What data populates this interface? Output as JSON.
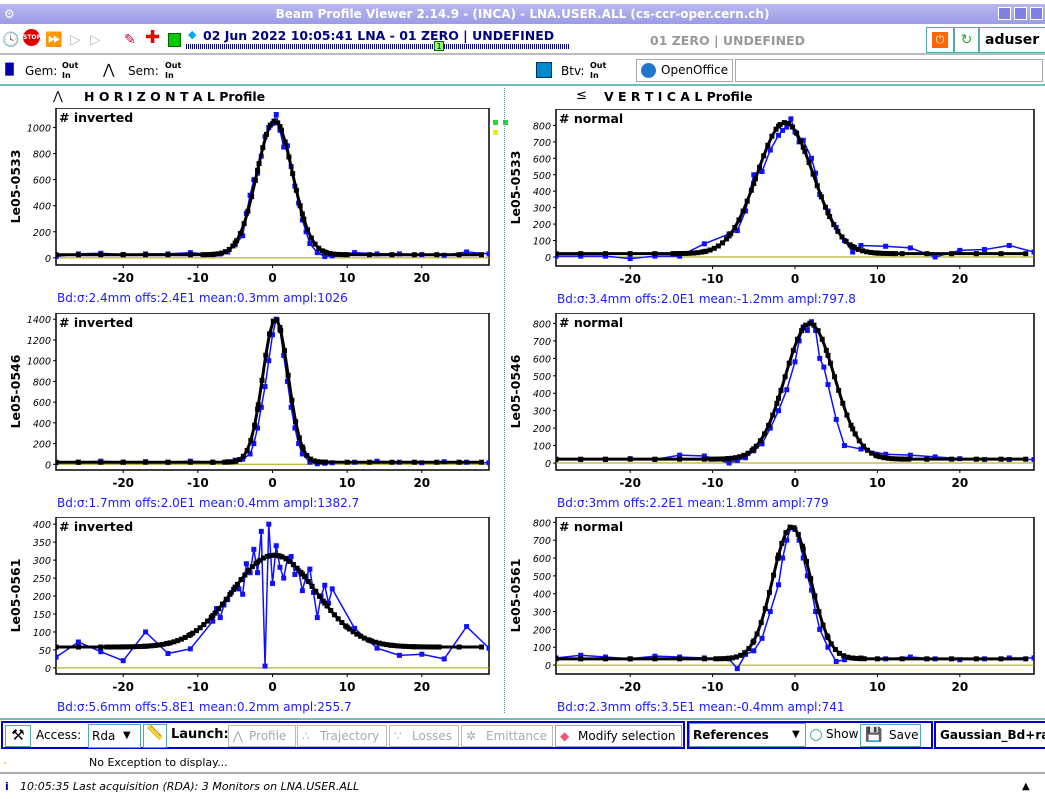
{
  "window": {
    "title": "Beam Profile Viewer 2.14.9 - (INCA)  - LNA.USER.ALL (cs-ccr-oper.cern.ch)"
  },
  "toolbar": {
    "acquisition": "02 Jun 2022  10:05:41  LNA - 01 ZERO | UNDEFINED",
    "timeline_marker": "1",
    "destination": "01 ZERO | UNDEFINED",
    "user": "aduser",
    "icons": [
      "clock-icon",
      "stop-icon",
      "fast-forward-icon",
      "play-step-icon",
      "play-icon",
      "eraser-icon",
      "add-icon",
      "green-square-icon",
      "diamond-icon"
    ]
  },
  "status": {
    "gem_label": "Gem:",
    "sem_label": "Sem:",
    "btv_label": "Btv:",
    "out_label": "Out",
    "in_label": "In",
    "openoffice_label": "OpenOffice",
    "gem_out": [
      "g",
      "g"
    ],
    "gem_in": [
      "",
      ""
    ],
    "sem_out": [
      "g",
      "g",
      "",
      "g",
      "g",
      "",
      "g",
      "g",
      "g",
      "g",
      "g",
      "",
      "g",
      "g",
      "g",
      "g",
      "g",
      "g",
      "",
      "g",
      "",
      "g",
      "",
      "g",
      "g",
      "g",
      "g",
      "g",
      "r",
      "",
      "g",
      "g"
    ],
    "sem_in": [
      "y",
      "",
      "y",
      "y",
      "",
      "y",
      "",
      "",
      "",
      "",
      "",
      "y",
      "",
      "",
      "",
      "",
      "",
      "",
      "y",
      "",
      "y",
      "y",
      "",
      "y",
      "",
      "",
      "",
      "",
      "r",
      "y",
      "y",
      ""
    ],
    "btv_out": [
      "g"
    ],
    "colors": {
      "g": "#22dd22",
      "y": "#eeee00",
      "r": "#dd0000"
    }
  },
  "panels": {
    "horizontal_title": "H O R I Z O N T A L  Profile",
    "vertical_title": "V E R T I C A L  Profile"
  },
  "chart_data": [
    {
      "type": "line",
      "panel": "horizontal",
      "ylabel": "Le05-0533",
      "mode": "# inverted",
      "caption": "Bd:σ:2.4mm offs:2.4E1 mean:0.3mm ampl:1026",
      "xlim": [
        -29,
        29
      ],
      "ylim": [
        -55,
        1150
      ],
      "xticks": [
        -20,
        -10,
        0,
        10,
        20
      ],
      "yticks": [
        0,
        200,
        400,
        600,
        800,
        1000
      ],
      "fit": {
        "sigma": 2.4,
        "offset": 24,
        "mean": 0.3,
        "amplitude": 1026
      },
      "measured": [
        [
          -29,
          10
        ],
        [
          -26,
          30
        ],
        [
          -23,
          35
        ],
        [
          -20,
          25
        ],
        [
          -17,
          30
        ],
        [
          -14,
          30
        ],
        [
          -11,
          40
        ],
        [
          -8,
          25
        ],
        [
          -7,
          30
        ],
        [
          -6,
          45
        ],
        [
          -5,
          100
        ],
        [
          -4,
          170
        ],
        [
          -3.5,
          340
        ],
        [
          -3,
          480
        ],
        [
          -2.5,
          600
        ],
        [
          -2,
          650
        ],
        [
          -1.5,
          780
        ],
        [
          -1,
          930
        ],
        [
          -0.5,
          1000
        ],
        [
          0,
          1030
        ],
        [
          0.5,
          1100
        ],
        [
          1,
          980
        ],
        [
          1.5,
          850
        ],
        [
          2,
          860
        ],
        [
          2.5,
          700
        ],
        [
          3,
          550
        ],
        [
          3.5,
          420
        ],
        [
          4,
          290
        ],
        [
          4.5,
          200
        ],
        [
          5,
          110
        ],
        [
          6,
          40
        ],
        [
          7,
          10
        ],
        [
          8,
          15
        ],
        [
          11,
          40
        ],
        [
          14,
          30
        ],
        [
          17,
          30
        ],
        [
          20,
          25
        ],
        [
          23,
          20
        ],
        [
          26,
          45
        ],
        [
          29,
          30
        ]
      ]
    },
    {
      "type": "line",
      "panel": "horizontal",
      "ylabel": "Le05-0546",
      "mode": "# inverted",
      "caption": "Bd:σ:1.7mm offs:2.0E1 mean:0.4mm ampl:1382.7",
      "xlim": [
        -29,
        29
      ],
      "ylim": [
        -55,
        1460
      ],
      "xticks": [
        -20,
        -10,
        0,
        10,
        20
      ],
      "yticks": [
        0,
        200,
        400,
        600,
        800,
        1000,
        1200,
        1400
      ],
      "fit": {
        "sigma": 1.7,
        "offset": 20,
        "mean": 0.4,
        "amplitude": 1382.7
      },
      "measured": [
        [
          -29,
          15
        ],
        [
          -26,
          20
        ],
        [
          -23,
          30
        ],
        [
          -20,
          20
        ],
        [
          -17,
          25
        ],
        [
          -14,
          20
        ],
        [
          -11,
          30
        ],
        [
          -8,
          20
        ],
        [
          -6,
          25
        ],
        [
          -5,
          40
        ],
        [
          -4,
          50
        ],
        [
          -3,
          100
        ],
        [
          -2.5,
          200
        ],
        [
          -2,
          350
        ],
        [
          -1.5,
          550
        ],
        [
          -1,
          750
        ],
        [
          -0.5,
          1000
        ],
        [
          0,
          1250
        ],
        [
          0.5,
          1400
        ],
        [
          1,
          1300
        ],
        [
          1.5,
          1050
        ],
        [
          2,
          800
        ],
        [
          2.5,
          550
        ],
        [
          3,
          350
        ],
        [
          3.5,
          200
        ],
        [
          4,
          100
        ],
        [
          5,
          20
        ],
        [
          6,
          5
        ],
        [
          7,
          10
        ],
        [
          8,
          15
        ],
        [
          11,
          20
        ],
        [
          14,
          30
        ],
        [
          17,
          20
        ],
        [
          20,
          15
        ],
        [
          23,
          25
        ],
        [
          26,
          20
        ],
        [
          29,
          15
        ]
      ]
    },
    {
      "type": "line",
      "panel": "horizontal",
      "ylabel": "Le05-0561",
      "mode": "# inverted",
      "caption": "Bd:σ:5.6mm offs:5.8E1 mean:0.2mm ampl:255.7",
      "xlim": [
        -29,
        29
      ],
      "ylim": [
        -17,
        420
      ],
      "xticks": [
        -20,
        -10,
        0,
        10,
        20
      ],
      "yticks": [
        0,
        50,
        100,
        150,
        200,
        250,
        300,
        350,
        400
      ],
      "fit": {
        "sigma": 5.6,
        "offset": 58,
        "mean": 0.2,
        "amplitude": 255.7
      },
      "measured": [
        [
          -29,
          30
        ],
        [
          -26,
          72
        ],
        [
          -23,
          45
        ],
        [
          -20,
          20
        ],
        [
          -17,
          100
        ],
        [
          -14,
          40
        ],
        [
          -11,
          53
        ],
        [
          -8,
          130
        ],
        [
          -7.5,
          165
        ],
        [
          -7,
          140
        ],
        [
          -6.5,
          175
        ],
        [
          -6,
          190
        ],
        [
          -5.5,
          210
        ],
        [
          -5,
          225
        ],
        [
          -4.5,
          220
        ],
        [
          -4,
          205
        ],
        [
          -3.5,
          290
        ],
        [
          -3,
          265
        ],
        [
          -2.5,
          330
        ],
        [
          -2,
          265
        ],
        [
          -1.5,
          380
        ],
        [
          -1,
          5
        ],
        [
          -0.5,
          400
        ],
        [
          0,
          235
        ],
        [
          0.5,
          340
        ],
        [
          1,
          280
        ],
        [
          1.5,
          250
        ],
        [
          2,
          305
        ],
        [
          2.5,
          310
        ],
        [
          3,
          260
        ],
        [
          3.5,
          270
        ],
        [
          4,
          215
        ],
        [
          4.5,
          255
        ],
        [
          5,
          275
        ],
        [
          5.5,
          210
        ],
        [
          6,
          140
        ],
        [
          6.5,
          200
        ],
        [
          7,
          230
        ],
        [
          7.5,
          180
        ],
        [
          8,
          220
        ],
        [
          11,
          110
        ],
        [
          14,
          55
        ],
        [
          17,
          35
        ],
        [
          20,
          38
        ],
        [
          23,
          25
        ],
        [
          26,
          115
        ],
        [
          29,
          55
        ]
      ]
    },
    {
      "type": "line",
      "panel": "vertical",
      "ylabel": "Le05-0533",
      "mode": "# normal",
      "caption": "Bd:σ:3.4mm offs:2.0E1 mean:-1.2mm ampl:797.8",
      "xlim": [
        -29,
        29
      ],
      "ylim": [
        -55,
        900
      ],
      "xticks": [
        -20,
        -10,
        0,
        10,
        20
      ],
      "yticks": [
        0,
        100,
        200,
        300,
        400,
        500,
        600,
        700,
        800
      ],
      "fit": {
        "sigma": 3.4,
        "offset": 20,
        "mean": -1.2,
        "amplitude": 797.8
      },
      "measured": [
        [
          -29,
          5
        ],
        [
          -26,
          5
        ],
        [
          -23,
          5
        ],
        [
          -20,
          -10
        ],
        [
          -17,
          5
        ],
        [
          -14,
          5
        ],
        [
          -11,
          80
        ],
        [
          -8,
          140
        ],
        [
          -7,
          160
        ],
        [
          -6,
          280
        ],
        [
          -5,
          500
        ],
        [
          -4,
          520
        ],
        [
          -3,
          650
        ],
        [
          -2,
          740
        ],
        [
          -1.5,
          770
        ],
        [
          -1,
          790
        ],
        [
          -0.5,
          840
        ],
        [
          0,
          760
        ],
        [
          0.5,
          700
        ],
        [
          1,
          710
        ],
        [
          2,
          600
        ],
        [
          2.5,
          510
        ],
        [
          3,
          380
        ],
        [
          4,
          280
        ],
        [
          5,
          180
        ],
        [
          6,
          100
        ],
        [
          7,
          30
        ],
        [
          8,
          70
        ],
        [
          11,
          65
        ],
        [
          14,
          55
        ],
        [
          17,
          0
        ],
        [
          20,
          40
        ],
        [
          23,
          45
        ],
        [
          26,
          70
        ],
        [
          29,
          30
        ]
      ]
    },
    {
      "type": "line",
      "panel": "vertical",
      "ylabel": "Le05-0546",
      "mode": "# normal",
      "caption": "Bd:σ:3mm offs:2.2E1 mean:1.8mm ampl:779",
      "xlim": [
        -29,
        29
      ],
      "ylim": [
        -40,
        860
      ],
      "xticks": [
        -20,
        -10,
        0,
        10,
        20
      ],
      "yticks": [
        0,
        100,
        200,
        300,
        400,
        500,
        600,
        700,
        800
      ],
      "fit": {
        "sigma": 3,
        "offset": 22,
        "mean": 1.8,
        "amplitude": 779
      },
      "measured": [
        [
          -29,
          20
        ],
        [
          -26,
          20
        ],
        [
          -23,
          20
        ],
        [
          -20,
          25
        ],
        [
          -17,
          20
        ],
        [
          -14,
          45
        ],
        [
          -11,
          40
        ],
        [
          -8,
          0
        ],
        [
          -7,
          15
        ],
        [
          -6,
          30
        ],
        [
          -5,
          70
        ],
        [
          -4,
          110
        ],
        [
          -3,
          200
        ],
        [
          -2,
          300
        ],
        [
          -1,
          420
        ],
        [
          0,
          580
        ],
        [
          0.5,
          700
        ],
        [
          1,
          780
        ],
        [
          1.5,
          760
        ],
        [
          2,
          810
        ],
        [
          2.5,
          760
        ],
        [
          3,
          600
        ],
        [
          3.5,
          550
        ],
        [
          4,
          450
        ],
        [
          5,
          250
        ],
        [
          6,
          100
        ],
        [
          8,
          80
        ],
        [
          11,
          50
        ],
        [
          14,
          45
        ],
        [
          17,
          35
        ],
        [
          20,
          25
        ],
        [
          23,
          20
        ],
        [
          26,
          20
        ],
        [
          29,
          20
        ]
      ]
    },
    {
      "type": "line",
      "panel": "vertical",
      "ylabel": "Le05-0561",
      "mode": "# normal",
      "caption": "Bd:σ:2.3mm offs:3.5E1 mean:-0.4mm ampl:741",
      "xlim": [
        -29,
        29
      ],
      "ylim": [
        -50,
        830
      ],
      "xticks": [
        -20,
        -10,
        0,
        10,
        20
      ],
      "yticks": [
        0,
        100,
        200,
        300,
        400,
        500,
        600,
        700,
        800
      ],
      "fit": {
        "sigma": 2.3,
        "offset": 35,
        "mean": -0.4,
        "amplitude": 741
      },
      "measured": [
        [
          -29,
          40
        ],
        [
          -26,
          55
        ],
        [
          -23,
          45
        ],
        [
          -20,
          35
        ],
        [
          -17,
          50
        ],
        [
          -14,
          45
        ],
        [
          -11,
          40
        ],
        [
          -8,
          35
        ],
        [
          -7,
          -20
        ],
        [
          -6,
          60
        ],
        [
          -5,
          80
        ],
        [
          -4,
          150
        ],
        [
          -3,
          300
        ],
        [
          -2,
          450
        ],
        [
          -1.5,
          600
        ],
        [
          -1,
          700
        ],
        [
          -0.5,
          770
        ],
        [
          0,
          760
        ],
        [
          0.5,
          700
        ],
        [
          1,
          600
        ],
        [
          1.5,
          500
        ],
        [
          2,
          420
        ],
        [
          2.5,
          300
        ],
        [
          3,
          200
        ],
        [
          4,
          100
        ],
        [
          5,
          20
        ],
        [
          6,
          30
        ],
        [
          8,
          40
        ],
        [
          11,
          35
        ],
        [
          14,
          45
        ],
        [
          17,
          35
        ],
        [
          20,
          30
        ],
        [
          23,
          35
        ],
        [
          26,
          40
        ],
        [
          29,
          40
        ]
      ]
    }
  ],
  "colors": {
    "measured": "#1010ff",
    "fit": "#000000",
    "zero_line": "#aaa000",
    "caption": "#1a1aff"
  },
  "bottom": {
    "access_label": "Access:",
    "access_value": "Rda",
    "launch_label": "Launch:",
    "profile": "Profile",
    "trajectory": "Trajectory",
    "losses": "Losses",
    "emittance": "Emittance",
    "modify": "Modify selection",
    "references": "References",
    "show": "Show",
    "save": "Save",
    "fit_mode": "Gaussian_Bd+raw"
  },
  "exception": "No Exception to display...",
  "statusline": "10:05:35 Last acquisition (RDA): 3 Monitors on LNA.USER.ALL"
}
